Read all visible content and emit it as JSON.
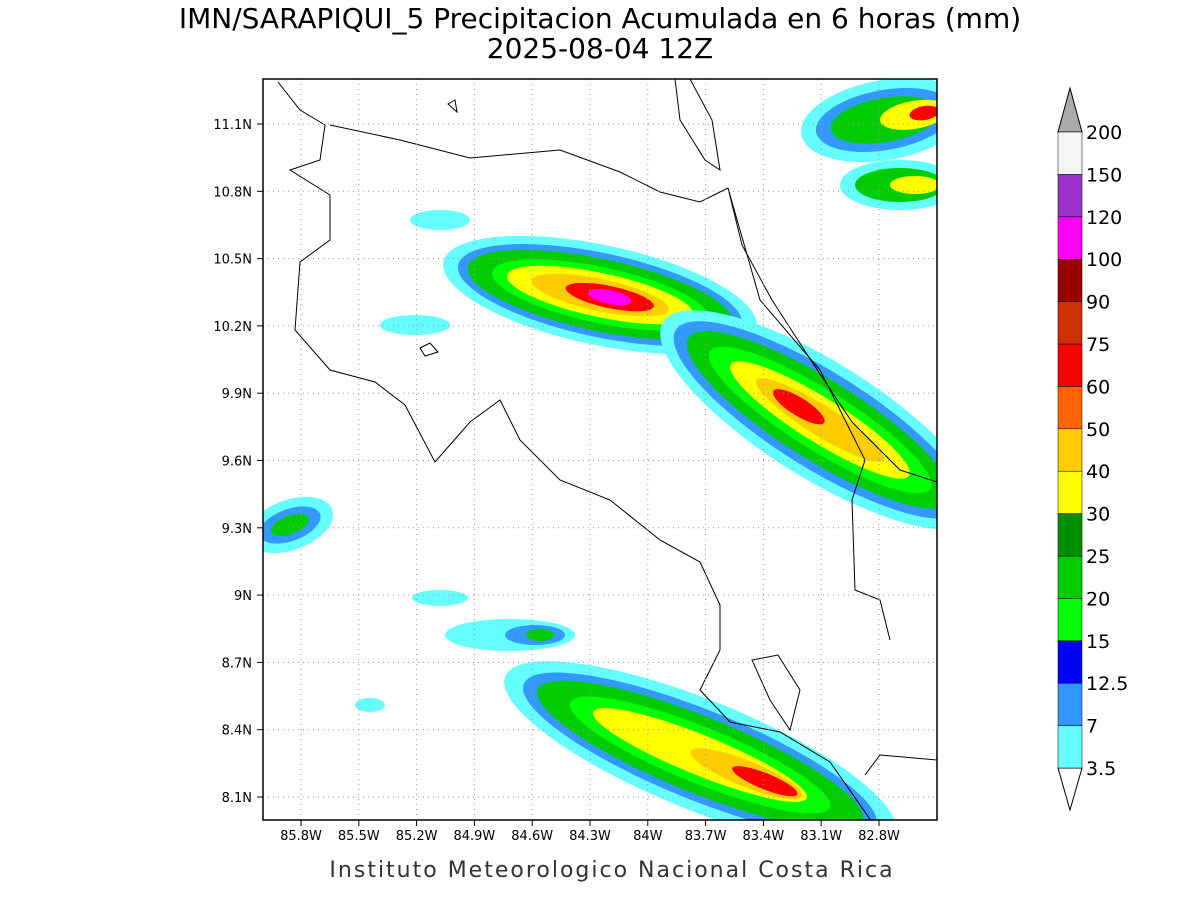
{
  "title": "IMN/SARAPIQUI_5 Precipitacion Acumulada en 6 horas (mm)",
  "subtitle": "2025-08-04 12Z",
  "map": {
    "lat_labels": [
      "11.1N",
      "10.8N",
      "10.5N",
      "10.2N",
      "9.9N",
      "9.6N",
      "9.3N",
      "9N",
      "8.7N",
      "8.4N",
      "8.1N"
    ],
    "lon_labels": [
      "85.8W",
      "85.5W",
      "85.2W",
      "84.9W",
      "84.6W",
      "84.3W",
      "84W",
      "83.7W",
      "83.4W",
      "83.1W",
      "82.8W"
    ]
  },
  "colorbar": {
    "levels": [
      3.5,
      7,
      12.5,
      15,
      20,
      25,
      30,
      40,
      50,
      60,
      75,
      90,
      100,
      120,
      150,
      200
    ],
    "colors": [
      "#66ffff",
      "#3399ff",
      "#0000ff",
      "#00ff00",
      "#00cc00",
      "#008f00",
      "#ffff00",
      "#ffcc00",
      "#ff6600",
      "#ff0000",
      "#cc3300",
      "#990000",
      "#ff00ff",
      "#9933cc",
      "#f5f5f5"
    ],
    "above_color": "#aaaaaa",
    "below_color": "#ffffff"
  },
  "footer": "Instituto Meteorologico Nacional Costa Rica"
}
